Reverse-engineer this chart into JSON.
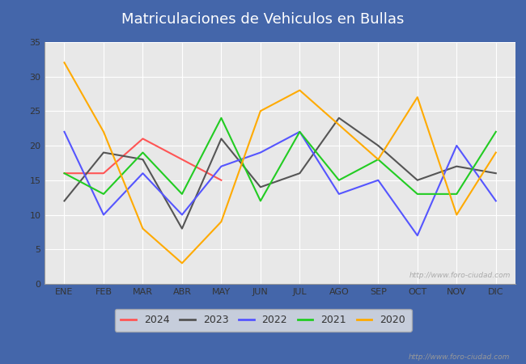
{
  "title": "Matriculaciones de Vehiculos en Bullas",
  "months": [
    "ENE",
    "FEB",
    "MAR",
    "ABR",
    "MAY",
    "JUN",
    "JUL",
    "AGO",
    "SEP",
    "OCT",
    "NOV",
    "DIC"
  ],
  "series": {
    "2024": {
      "color": "#ff5555",
      "data": [
        16,
        16,
        21,
        18,
        15,
        null,
        null,
        null,
        null,
        null,
        null,
        null
      ]
    },
    "2023": {
      "color": "#555555",
      "data": [
        12,
        19,
        18,
        8,
        21,
        14,
        16,
        24,
        20,
        15,
        17,
        16
      ]
    },
    "2022": {
      "color": "#5555ff",
      "data": [
        22,
        10,
        16,
        10,
        17,
        19,
        22,
        13,
        15,
        7,
        20,
        12
      ]
    },
    "2021": {
      "color": "#22cc22",
      "data": [
        16,
        13,
        19,
        13,
        24,
        12,
        22,
        15,
        18,
        13,
        13,
        22
      ]
    },
    "2020": {
      "color": "#ffaa00",
      "data": [
        32,
        22,
        8,
        3,
        9,
        25,
        28,
        null,
        18,
        27,
        10,
        19
      ]
    }
  },
  "years_order": [
    "2024",
    "2023",
    "2022",
    "2021",
    "2020"
  ],
  "ylim": [
    0,
    35
  ],
  "yticks": [
    0,
    5,
    10,
    15,
    20,
    25,
    30,
    35
  ],
  "watermark": "http://www.foro-ciudad.com",
  "plot_bgcolor": "#e8e8e8",
  "header_color": "#5577bb",
  "border_color": "#4466aa",
  "grid_color": "#ffffff",
  "linewidth": 1.5,
  "title_fontsize": 13,
  "tick_fontsize": 8,
  "legend_fontsize": 9
}
